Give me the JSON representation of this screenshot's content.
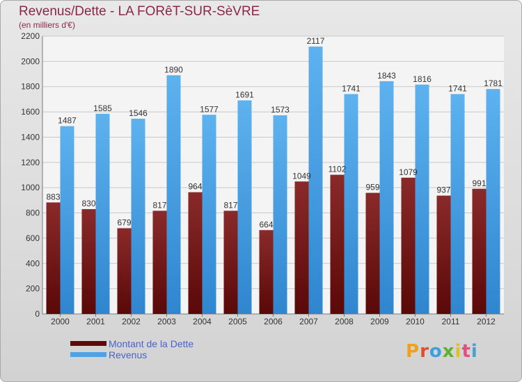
{
  "title": "Revenus/Dette - LA FORêT-SUR-SèVRE",
  "subtitle": "(en milliers d'€)",
  "chart_data": {
    "type": "bar",
    "categories": [
      "2000",
      "2001",
      "2002",
      "2003",
      "2004",
      "2005",
      "2006",
      "2007",
      "2008",
      "2009",
      "2010",
      "2011",
      "2012"
    ],
    "series": [
      {
        "name": "Montant de la Dette",
        "color": "#7a1717",
        "values": [
          883,
          830,
          679,
          817,
          964,
          817,
          664,
          1049,
          1102,
          959,
          1079,
          937,
          991
        ]
      },
      {
        "name": "Revenus",
        "color": "#4da3e6",
        "values": [
          1487,
          1585,
          1546,
          1890,
          1577,
          1691,
          1573,
          2117,
          1741,
          1843,
          1816,
          1741,
          1781
        ]
      }
    ],
    "yticks": [
      0,
      200,
      400,
      600,
      800,
      1000,
      1200,
      1400,
      1600,
      1800,
      2000,
      2200
    ],
    "ylim": [
      0,
      2200
    ],
    "grid": true,
    "legend_position": "bottom-left"
  },
  "logo": {
    "text": "Proxiti",
    "colors": [
      "#f0a020",
      "#e05030",
      "#3aa0e0",
      "#60b030",
      "#e0c020",
      "#e05080",
      "#4aa0d0"
    ]
  }
}
